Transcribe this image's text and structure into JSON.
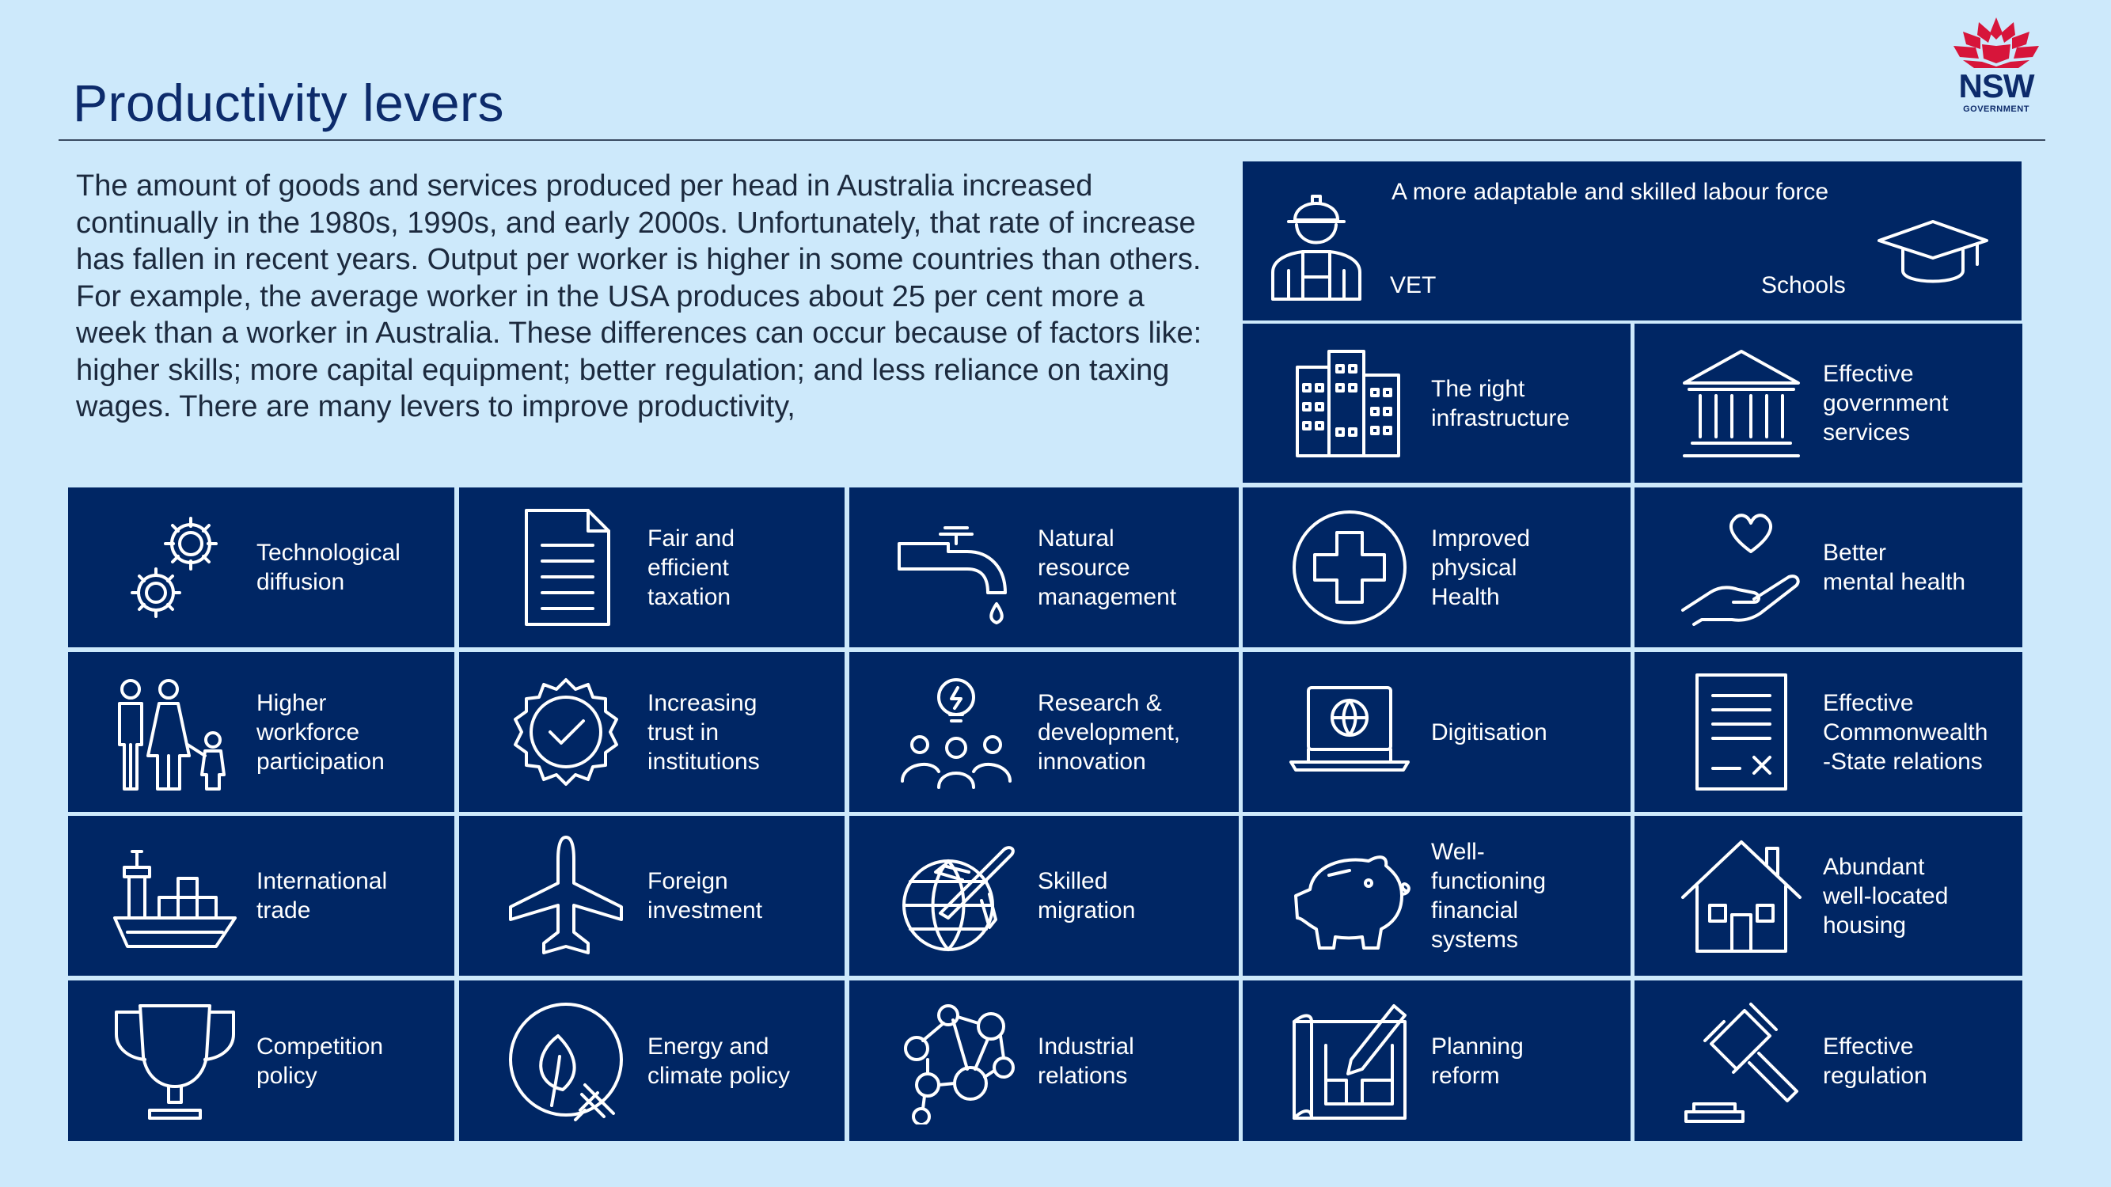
{
  "page": {
    "title": "Productivity levers",
    "intro": "The amount of goods and services produced per head in Australia increased continually in the 1980s, 1990s, and early 2000s. Unfortunately, that rate of increase has fallen in recent years. Output per worker is higher in some countries than others. For example, the average worker in the USA produces about 25 per cent more a week than a worker in Australia. These differences can occur because of factors like: higher skills; more capital equipment; better regulation; and less reliance on taxing wages. There are many levers to improve productivity,"
  },
  "logo": {
    "name": "NSW",
    "sub": "GOVERNMENT"
  },
  "labour": {
    "heading": "A more adaptable and skilled labour force",
    "left": "VET",
    "right": "Schools"
  },
  "colors": {
    "tile": "#002664",
    "background": "#cde9fb",
    "title": "#0d2b6b",
    "logo_red": "#d7153a"
  },
  "tiles": [
    {
      "label": "The right\ninfrastructure",
      "icon": "buildings-icon"
    },
    {
      "label": "Effective\ngovernment\nservices",
      "icon": "government-building-icon"
    },
    {
      "label": "Technological\ndiffusion",
      "icon": "gears-icon"
    },
    {
      "label": "Fair and\nefficient\ntaxation",
      "icon": "document-icon"
    },
    {
      "label": "Natural\nresource\nmanagement",
      "icon": "tap-icon"
    },
    {
      "label": "Improved\nphysical\nHealth",
      "icon": "medical-cross-icon"
    },
    {
      "label": "Better\nmental health",
      "icon": "heart-hand-icon"
    },
    {
      "label": "Higher\nworkforce\nparticipation",
      "icon": "family-icon"
    },
    {
      "label": "Increasing\ntrust in\ninstitutions",
      "icon": "badge-check-icon"
    },
    {
      "label": "Research &\ndevelopment,\ninnovation",
      "icon": "team-idea-icon"
    },
    {
      "label": "Digitisation",
      "icon": "laptop-globe-icon"
    },
    {
      "label": "Effective\nCommonwealth\n-State relations",
      "icon": "form-icon"
    },
    {
      "label": "International\ntrade",
      "icon": "cargo-ship-icon"
    },
    {
      "label": "Foreign\ninvestment",
      "icon": "airplane-icon"
    },
    {
      "label": "Skilled\nmigration",
      "icon": "globe-plane-icon"
    },
    {
      "label": "Well-\nfunctioning\nfinancial\nsystems",
      "icon": "piggy-bank-icon"
    },
    {
      "label": "Abundant\nwell-located\nhousing",
      "icon": "house-icon"
    },
    {
      "label": "Competition\npolicy",
      "icon": "trophy-icon"
    },
    {
      "label": "Energy and\nclimate policy",
      "icon": "leaf-plug-icon"
    },
    {
      "label": "Industrial\nrelations",
      "icon": "network-icon"
    },
    {
      "label": "Planning\nreform",
      "icon": "blueprint-icon"
    },
    {
      "label": "Effective\nregulation",
      "icon": "gavel-icon"
    }
  ]
}
